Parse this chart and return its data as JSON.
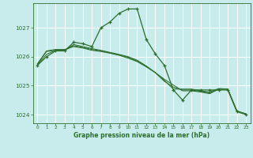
{
  "title": "Graphe pression niveau de la mer (hPa)",
  "bg_color": "#c8ecec",
  "grid_color": "#ffffff",
  "line_color": "#2d6e2d",
  "marker_color": "#2d6e2d",
  "xlim": [
    -0.5,
    23.5
  ],
  "ylim": [
    1023.7,
    1027.85
  ],
  "yticks": [
    1024,
    1025,
    1026,
    1027
  ],
  "xticks": [
    0,
    1,
    2,
    3,
    4,
    5,
    6,
    7,
    8,
    9,
    10,
    11,
    12,
    13,
    14,
    15,
    16,
    17,
    18,
    19,
    20,
    21,
    22,
    23
  ],
  "series": [
    {
      "x": [
        0,
        1,
        2,
        3,
        4,
        5,
        6,
        7,
        8,
        9,
        10,
        11,
        12,
        13,
        14,
        15,
        16,
        17,
        18,
        19,
        20,
        21,
        22,
        23
      ],
      "y": [
        1025.7,
        1026.0,
        1026.2,
        1026.2,
        1026.5,
        1026.45,
        1026.35,
        1027.0,
        1027.2,
        1027.5,
        1027.65,
        1027.65,
        1026.6,
        1026.1,
        1025.7,
        1024.85,
        1024.5,
        1024.85,
        1024.85,
        1024.85,
        1024.85,
        1024.85,
        1024.1,
        1024.0
      ],
      "has_markers": true
    },
    {
      "x": [
        0,
        1,
        2,
        3,
        4,
        5,
        6,
        7,
        8,
        9,
        10,
        11,
        12,
        13,
        14,
        15,
        16,
        17,
        18,
        19,
        20,
        21,
        22,
        23
      ],
      "y": [
        1025.75,
        1026.2,
        1026.25,
        1026.25,
        1026.35,
        1026.3,
        1026.22,
        1026.18,
        1026.12,
        1026.05,
        1025.95,
        1025.83,
        1025.65,
        1025.45,
        1025.22,
        1025.02,
        1024.82,
        1024.82,
        1024.78,
        1024.72,
        1024.88,
        1024.88,
        1024.12,
        1024.02
      ],
      "has_markers": false
    },
    {
      "x": [
        0,
        1,
        2,
        3,
        4,
        5,
        6,
        7,
        8,
        9,
        10,
        11,
        12,
        13,
        14,
        15,
        16,
        17,
        18,
        19,
        20,
        21,
        22,
        23
      ],
      "y": [
        1025.75,
        1026.18,
        1026.22,
        1026.22,
        1026.42,
        1026.35,
        1026.28,
        1026.22,
        1026.15,
        1026.08,
        1026.0,
        1025.88,
        1025.68,
        1025.45,
        1025.18,
        1024.88,
        1024.88,
        1024.88,
        1024.82,
        1024.78,
        1024.9,
        1024.88,
        1024.12,
        1024.02
      ],
      "has_markers": false
    },
    {
      "x": [
        0,
        1,
        2,
        3,
        4,
        5,
        6,
        7,
        8,
        9,
        10,
        11,
        12,
        13,
        14,
        15,
        16,
        17,
        18,
        19,
        20,
        21,
        22,
        23
      ],
      "y": [
        1025.72,
        1026.08,
        1026.22,
        1026.22,
        1026.38,
        1026.32,
        1026.25,
        1026.2,
        1026.13,
        1026.06,
        1025.98,
        1025.85,
        1025.67,
        1025.45,
        1025.15,
        1024.95,
        1024.85,
        1024.85,
        1024.8,
        1024.75,
        1024.88,
        1024.88,
        1024.12,
        1024.02
      ],
      "has_markers": false
    }
  ]
}
